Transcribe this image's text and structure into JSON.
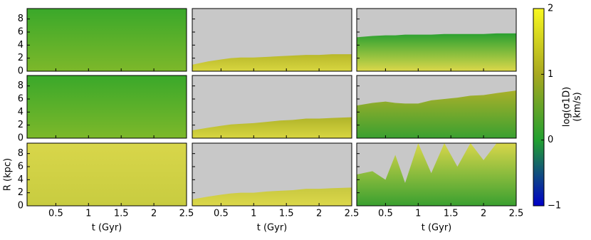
{
  "chart_data": {
    "type": "area",
    "xlim": [
      0.06,
      2.5
    ],
    "ylim": [
      0,
      9.6
    ],
    "xticks": [
      0.5,
      1.0,
      1.5,
      2.0,
      2.5
    ],
    "yticks": [
      0,
      2,
      4,
      6,
      8
    ],
    "xlabel": "t (Gyr)",
    "ylabel": "R (kpc)",
    "background": "#c8c8c8",
    "panels": [
      {
        "x": [
          0.06,
          0.3,
          0.5,
          0.65,
          0.8,
          1.0,
          1.2,
          1.4,
          1.6,
          1.8,
          2.0,
          2.2,
          2.5
        ],
        "values": [
          9.6,
          9.6,
          9.6,
          9.6,
          9.6,
          9.6,
          9.6,
          9.6,
          9.6,
          9.6,
          9.6,
          9.6,
          9.6
        ],
        "color": "#3aa82a",
        "base_color": "#7db82a"
      },
      {
        "x": [
          0.06,
          0.3,
          0.5,
          0.65,
          0.8,
          1.0,
          1.2,
          1.4,
          1.6,
          1.8,
          2.0,
          2.2,
          2.5
        ],
        "values": [
          1.0,
          1.5,
          1.8,
          2.0,
          2.1,
          2.1,
          2.2,
          2.3,
          2.4,
          2.5,
          2.5,
          2.6,
          2.6
        ],
        "color": "#b8b82a",
        "base_color": "#d8d640"
      },
      {
        "x": [
          0.06,
          0.3,
          0.5,
          0.65,
          0.8,
          1.0,
          1.2,
          1.4,
          1.6,
          1.8,
          2.0,
          2.2,
          2.5
        ],
        "values": [
          5.2,
          5.4,
          5.5,
          5.5,
          5.6,
          5.6,
          5.6,
          5.7,
          5.7,
          5.7,
          5.7,
          5.8,
          5.8
        ],
        "color": "#2aa030",
        "base_color": "#dcd84a"
      },
      {
        "x": [
          0.06,
          0.3,
          0.5,
          0.65,
          0.8,
          1.0,
          1.2,
          1.4,
          1.6,
          1.8,
          2.0,
          2.2,
          2.5
        ],
        "values": [
          9.6,
          9.6,
          9.6,
          9.6,
          9.6,
          9.6,
          9.6,
          9.6,
          9.6,
          9.6,
          9.6,
          9.6,
          9.6
        ],
        "color": "#3aa82a",
        "base_color": "#7db82a"
      },
      {
        "x": [
          0.06,
          0.3,
          0.5,
          0.65,
          0.8,
          1.0,
          1.2,
          1.4,
          1.6,
          1.8,
          2.0,
          2.2,
          2.5
        ],
        "values": [
          1.2,
          1.6,
          1.9,
          2.1,
          2.2,
          2.3,
          2.5,
          2.7,
          2.8,
          3.0,
          3.0,
          3.1,
          3.2
        ],
        "color": "#b0b42a",
        "base_color": "#d8d640"
      },
      {
        "x": [
          0.06,
          0.3,
          0.5,
          0.65,
          0.8,
          1.0,
          1.2,
          1.4,
          1.6,
          1.8,
          2.0,
          2.2,
          2.5
        ],
        "values": [
          5.0,
          5.4,
          5.6,
          5.4,
          5.3,
          5.3,
          5.8,
          6.0,
          6.2,
          6.5,
          6.6,
          6.9,
          7.3
        ],
        "color": "#a8b02a",
        "base_color": "#3aa030"
      },
      {
        "x": [
          0.06,
          0.3,
          0.5,
          0.65,
          0.8,
          1.0,
          1.2,
          1.4,
          1.6,
          1.8,
          2.0,
          2.2,
          2.5
        ],
        "values": [
          9.6,
          9.6,
          9.6,
          9.6,
          9.6,
          9.6,
          9.6,
          9.6,
          9.6,
          9.6,
          9.6,
          9.6,
          9.6
        ],
        "color": "#d8d64a",
        "base_color": "#c8cc40"
      },
      {
        "x": [
          0.06,
          0.3,
          0.5,
          0.65,
          0.8,
          1.0,
          1.2,
          1.4,
          1.6,
          1.8,
          2.0,
          2.2,
          2.5
        ],
        "values": [
          1.0,
          1.4,
          1.7,
          1.9,
          2.0,
          2.0,
          2.2,
          2.3,
          2.4,
          2.6,
          2.6,
          2.7,
          2.8
        ],
        "color": "#c8c840",
        "base_color": "#dcd84a"
      },
      {
        "x": [
          0.06,
          0.3,
          0.5,
          0.65,
          0.8,
          1.0,
          1.2,
          1.4,
          1.6,
          1.8,
          2.0,
          2.2,
          2.5
        ],
        "values": [
          4.8,
          5.3,
          4.0,
          7.8,
          3.5,
          9.6,
          5.0,
          9.6,
          6.0,
          9.6,
          7.0,
          9.6,
          9.6
        ],
        "color": "#d8d64a",
        "base_color": "#3aa030"
      }
    ],
    "colorbar": {
      "label": [
        "log(σ1D)",
        "(km/s)"
      ],
      "lim": [
        -1,
        2
      ],
      "ticks": [
        {
          "value": -1,
          "label": "−1"
        },
        0,
        1,
        2
      ],
      "colors": [
        "#0000c8",
        "#22a030",
        "#a8a820",
        "#f8f820"
      ]
    }
  }
}
